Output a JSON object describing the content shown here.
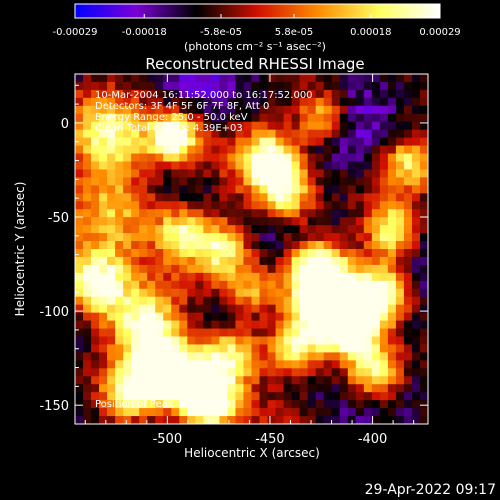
{
  "chart_data": {
    "type": "heatmap",
    "title": "Reconstructed RHESSI Image",
    "xlabel": "Heliocentric X (arcsec)",
    "ylabel": "Heliocentric Y (arcsec)",
    "x_ticks": [
      -500,
      -450,
      -400
    ],
    "x_tick_labels": [
      "-500",
      "-450",
      "-400"
    ],
    "y_ticks": [
      0,
      -50,
      -100,
      -150
    ],
    "y_tick_labels": [
      "0",
      "-50",
      "-100",
      "-150"
    ],
    "xlim": [
      -545,
      -373
    ],
    "ylim": [
      -160,
      26
    ],
    "colorbar": {
      "tick_values": [
        -0.00029,
        -0.00018,
        -5.8e-05,
        5.8e-05,
        0.00018,
        0.00029
      ],
      "tick_labels": [
        "-0.00029",
        "-0.00018",
        "-5.8e-05",
        "5.8e-05",
        "0.00018",
        "0.00029"
      ],
      "range": [
        -0.00029,
        0.00029
      ],
      "units_label": "(photons cm⁻² s⁻¹ asec⁻²)"
    },
    "annotations": [
      "10-Mar-2004 16:11:52.000 to 16:17:52.000",
      "Detectors: 3F 4F 5F 6F 7F 8F, Att 0",
      "Energy Range: 25.0 - 50.0 keV",
      "Clean     Total counts: 4.39E+03"
    ],
    "peak_label": "Position of Peak = [-409,29]",
    "peak": {
      "x": -409,
      "y": 29
    },
    "colormap_stops": [
      "#0000ff",
      "#7a00d8",
      "#000000",
      "#d01000",
      "#ff8c00",
      "#ffff60",
      "#ffffff"
    ]
  },
  "footer_timestamp": "29-Apr-2022 09:17"
}
